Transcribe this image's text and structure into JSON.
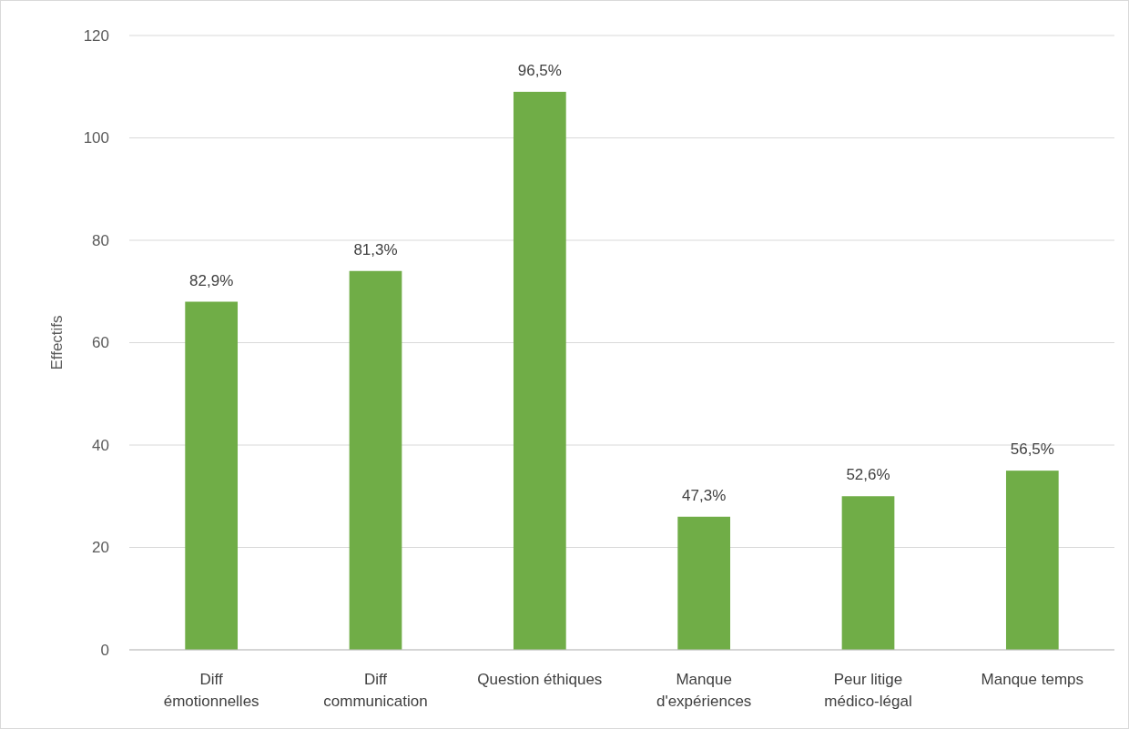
{
  "chart_data": {
    "type": "bar",
    "ylabel": "Effectifs",
    "categories": [
      "Diff\némotionnelles",
      "Diff\ncommunication",
      "Question éthiques",
      "Manque\nd'expériences",
      "Peur litige\nmédico-légal",
      "Manque temps"
    ],
    "values": [
      68,
      74,
      109,
      26,
      30,
      35
    ],
    "annotations": [
      {
        "text": "82,9%",
        "x": "Diff\némotionnelles",
        "y": 68
      },
      {
        "text": "81,3%",
        "x": "Diff\ncommunication",
        "y": 74
      },
      {
        "text": "96,5%",
        "x": "Question éthiques",
        "y": 109
      },
      {
        "text": "47,3%",
        "x": "Manque\nd'expériences",
        "y": 26
      },
      {
        "text": "52,6%",
        "x": "Peur litige\nmédico-légal",
        "y": 30
      },
      {
        "text": "56,5%",
        "x": "Manque temps",
        "y": 35
      }
    ],
    "color": "#70ad47",
    "ylim": [
      0,
      120
    ],
    "yticks": [
      0,
      20,
      40,
      60,
      80,
      100,
      120
    ],
    "grid": "y"
  }
}
